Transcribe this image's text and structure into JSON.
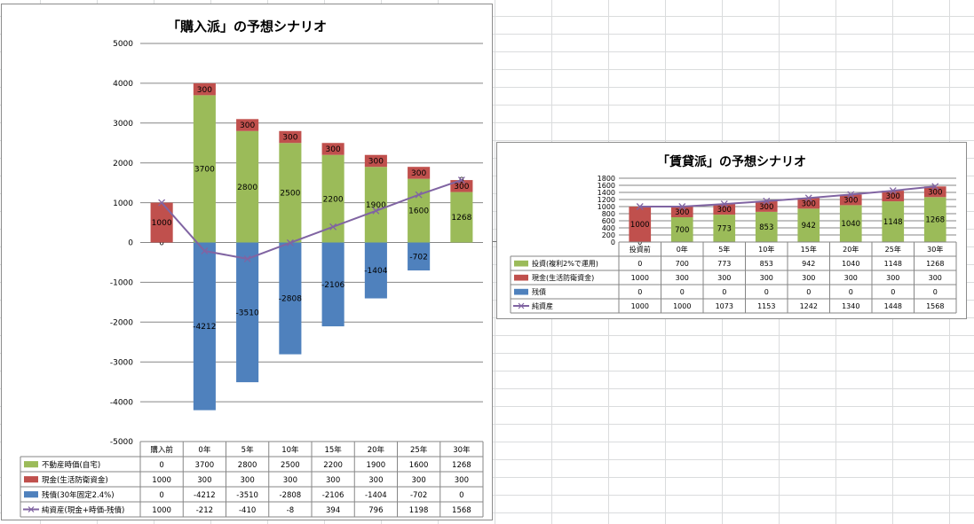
{
  "chart_data": [
    {
      "type": "bar",
      "stacked": true,
      "title": "「購入派」の予想シナリオ",
      "categories": [
        "購入前",
        "0年",
        "5年",
        "10年",
        "15年",
        "20年",
        "25年",
        "30年"
      ],
      "ylim": [
        -5000,
        5000
      ],
      "yticks": [
        5000,
        4000,
        3000,
        2000,
        1000,
        0,
        -1000,
        -2000,
        -3000,
        -4000,
        -5000
      ],
      "grid": true,
      "legend": "data-table",
      "series": [
        {
          "name": "不動産時価(自宅)",
          "type": "bar",
          "color": "#9bbb59",
          "values": [
            0,
            3700,
            2800,
            2500,
            2200,
            1900,
            1600,
            1268
          ]
        },
        {
          "name": "現金(生活防衛資金)",
          "type": "bar",
          "color": "#c0504d",
          "values": [
            1000,
            300,
            300,
            300,
            300,
            300,
            300,
            300
          ]
        },
        {
          "name": "残債(30年固定2.4%)",
          "type": "bar",
          "color": "#4f81bd",
          "values": [
            0,
            -4212,
            -3510,
            -2808,
            -2106,
            -1404,
            -702,
            0
          ]
        },
        {
          "name": "純資産(現金+時価-残債)",
          "type": "line",
          "color": "#8064a2",
          "values": [
            1000,
            -212,
            -410,
            -8,
            394,
            796,
            1198,
            1568
          ]
        }
      ]
    },
    {
      "type": "bar",
      "stacked": true,
      "title": "「賃貸派」の予想シナリオ",
      "categories": [
        "投資前",
        "0年",
        "5年",
        "10年",
        "15年",
        "20年",
        "25年",
        "30年"
      ],
      "ylim": [
        0,
        1800
      ],
      "yticks": [
        1800,
        1600,
        1400,
        1200,
        1000,
        800,
        600,
        400,
        200,
        0
      ],
      "grid": true,
      "legend": "data-table",
      "series": [
        {
          "name": "投資(複利2%で運用)",
          "type": "bar",
          "color": "#9bbb59",
          "values": [
            0,
            700,
            773,
            853,
            942,
            1040,
            1148,
            1268
          ]
        },
        {
          "name": "現金(生活防衛資金)",
          "type": "bar",
          "color": "#c0504d",
          "values": [
            1000,
            300,
            300,
            300,
            300,
            300,
            300,
            300
          ]
        },
        {
          "name": "残債",
          "type": "bar",
          "color": "#4f81bd",
          "values": [
            0,
            0,
            0,
            0,
            0,
            0,
            0,
            0
          ]
        },
        {
          "name": "純資産",
          "type": "line",
          "color": "#8064a2",
          "values": [
            1000,
            1000,
            1073,
            1153,
            1242,
            1340,
            1448,
            1568
          ]
        }
      ]
    }
  ]
}
